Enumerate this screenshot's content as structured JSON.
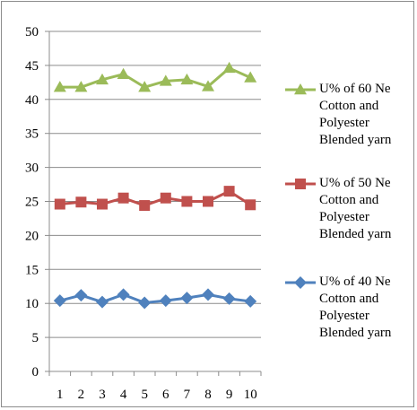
{
  "chart_data": {
    "type": "line",
    "x": [
      "1",
      "2",
      "3",
      "4",
      "5",
      "6",
      "7",
      "8",
      "9",
      "10"
    ],
    "ylim": [
      0,
      50
    ],
    "yticks": [
      "0",
      "5",
      "10",
      "15",
      "20",
      "25",
      "30",
      "35",
      "40",
      "45",
      "50"
    ],
    "grid": "horizontal major gridlines",
    "legend_position": "right",
    "series": [
      {
        "name": "U% of 60 Ne Cotton and Polyester Blended yarn",
        "name_lines": [
          "U% of 60 Ne",
          "Cotton and",
          "Polyester",
          "Blended yarn"
        ],
        "values": [
          41.8,
          41.8,
          42.9,
          43.7,
          41.8,
          42.7,
          42.9,
          41.9,
          44.6,
          43.2
        ],
        "color": "#9bbb59",
        "marker": "triangle"
      },
      {
        "name": "U% of 50 Ne Cotton and Polyester Blended yarn",
        "name_lines": [
          "U% of 50 Ne",
          "Cotton and",
          "Polyester",
          "Blended yarn"
        ],
        "values": [
          24.6,
          24.9,
          24.6,
          25.5,
          24.4,
          25.5,
          25.0,
          25.0,
          26.5,
          24.5
        ],
        "color": "#c0504d",
        "marker": "square"
      },
      {
        "name": "U% of 40 Ne Cotton and Polyester Blended yarn",
        "name_lines": [
          "U% of 40 Ne",
          "Cotton and",
          "Polyester",
          "Blended yarn"
        ],
        "values": [
          10.4,
          11.2,
          10.2,
          11.3,
          10.1,
          10.4,
          10.8,
          11.3,
          10.7,
          10.3
        ],
        "color": "#4f81bd",
        "marker": "diamond"
      }
    ]
  }
}
